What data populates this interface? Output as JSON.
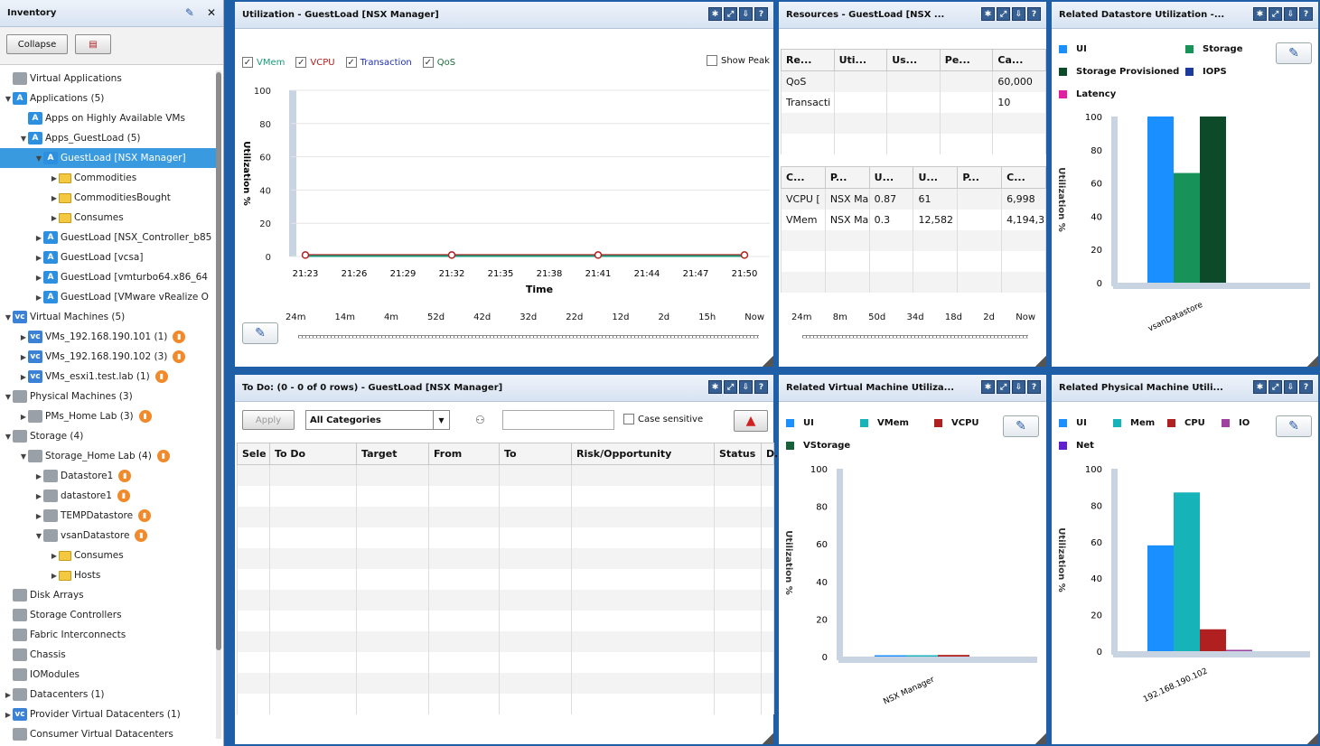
{
  "inventory": {
    "title": "Inventory",
    "collapse_label": "Collapse",
    "items": [
      {
        "label": "Virtual Applications",
        "indent": 0,
        "arrow": "",
        "icon": "gray",
        "badge": false
      },
      {
        "label": "Applications (5)",
        "indent": 0,
        "arrow": "▼",
        "icon": "app",
        "badge": false
      },
      {
        "label": "Apps on Highly Available VMs",
        "indent": 1,
        "arrow": "",
        "icon": "app",
        "badge": false
      },
      {
        "label": "Apps_GuestLoad (5)",
        "indent": 1,
        "arrow": "▼",
        "icon": "app",
        "badge": false
      },
      {
        "label": "GuestLoad [NSX Manager]",
        "indent": 2,
        "arrow": "▼",
        "icon": "app",
        "badge": false,
        "selected": true
      },
      {
        "label": "Commodities",
        "indent": 3,
        "arrow": "▶",
        "icon": "folder",
        "badge": false
      },
      {
        "label": "CommoditiesBought",
        "indent": 3,
        "arrow": "▶",
        "icon": "folder",
        "badge": false
      },
      {
        "label": "Consumes",
        "indent": 3,
        "arrow": "▶",
        "icon": "folder",
        "badge": false
      },
      {
        "label": "GuestLoad [NSX_Controller_b85",
        "indent": 2,
        "arrow": "▶",
        "icon": "app",
        "badge": false
      },
      {
        "label": "GuestLoad [vcsa]",
        "indent": 2,
        "arrow": "▶",
        "icon": "app",
        "badge": false
      },
      {
        "label": "GuestLoad [vmturbo64.x86_64",
        "indent": 2,
        "arrow": "▶",
        "icon": "app",
        "badge": false
      },
      {
        "label": "GuestLoad [VMware vRealize O",
        "indent": 2,
        "arrow": "▶",
        "icon": "app",
        "badge": false
      },
      {
        "label": "Virtual Machines (5)",
        "indent": 0,
        "arrow": "▼",
        "icon": "vm",
        "badge": false
      },
      {
        "label": "VMs_192.168.190.101 (1)",
        "indent": 1,
        "arrow": "▶",
        "icon": "vm",
        "badge": true
      },
      {
        "label": "VMs_192.168.190.102 (3)",
        "indent": 1,
        "arrow": "▶",
        "icon": "vm",
        "badge": true
      },
      {
        "label": "VMs_esxi1.test.lab (1)",
        "indent": 1,
        "arrow": "▶",
        "icon": "vm",
        "badge": true
      },
      {
        "label": "Physical Machines (3)",
        "indent": 0,
        "arrow": "▼",
        "icon": "gray",
        "badge": false
      },
      {
        "label": "PMs_Home Lab (3)",
        "indent": 1,
        "arrow": "▶",
        "icon": "gray",
        "badge": true
      },
      {
        "label": "Storage (4)",
        "indent": 0,
        "arrow": "▼",
        "icon": "gray",
        "badge": false
      },
      {
        "label": "Storage_Home Lab (4)",
        "indent": 1,
        "arrow": "▼",
        "icon": "gray",
        "badge": true
      },
      {
        "label": "Datastore1",
        "indent": 2,
        "arrow": "▶",
        "icon": "gray",
        "badge": true
      },
      {
        "label": "datastore1",
        "indent": 2,
        "arrow": "▶",
        "icon": "gray",
        "badge": true
      },
      {
        "label": "TEMPDatastore",
        "indent": 2,
        "arrow": "▶",
        "icon": "gray",
        "badge": true
      },
      {
        "label": "vsanDatastore",
        "indent": 2,
        "arrow": "▼",
        "icon": "gray",
        "badge": true
      },
      {
        "label": "Consumes",
        "indent": 3,
        "arrow": "▶",
        "icon": "folder",
        "badge": false
      },
      {
        "label": "Hosts",
        "indent": 3,
        "arrow": "▶",
        "icon": "folder",
        "badge": false
      },
      {
        "label": "Disk Arrays",
        "indent": 0,
        "arrow": "",
        "icon": "gray",
        "badge": false
      },
      {
        "label": "Storage Controllers",
        "indent": 0,
        "arrow": "",
        "icon": "gray",
        "badge": false
      },
      {
        "label": "Fabric Interconnects",
        "indent": 0,
        "arrow": "",
        "icon": "gray",
        "badge": false
      },
      {
        "label": "Chassis",
        "indent": 0,
        "arrow": "",
        "icon": "gray",
        "badge": false
      },
      {
        "label": "IOModules",
        "indent": 0,
        "arrow": "",
        "icon": "gray",
        "badge": false
      },
      {
        "label": "Datacenters (1)",
        "indent": 0,
        "arrow": "▶",
        "icon": "gray",
        "badge": false
      },
      {
        "label": "Provider Virtual Datacenters (1)",
        "indent": 0,
        "arrow": "▶",
        "icon": "vm",
        "badge": false
      },
      {
        "label": "Consumer Virtual Datacenters",
        "indent": 0,
        "arrow": "",
        "icon": "gray",
        "badge": false
      }
    ]
  },
  "utilization": {
    "title": "Utilization - GuestLoad [NSX Manager]",
    "checks": [
      {
        "label": "VMem",
        "color": "#1a9a7a"
      },
      {
        "label": "VCPU",
        "color": "#b02020"
      },
      {
        "label": "Transaction",
        "color": "#2030b0"
      },
      {
        "label": "QoS",
        "color": "#207040"
      }
    ],
    "show_peak": "Show Peak",
    "slider_labels": [
      "24m",
      "14m",
      "4m",
      "52d",
      "42d",
      "32d",
      "22d",
      "12d",
      "2d",
      "15h",
      "Now"
    ]
  },
  "resources": {
    "title": "Resources - GuestLoad [NSX ...",
    "table1": {
      "headers": [
        "Re...",
        "Uti...",
        "Us...",
        "Pe...",
        "Ca..."
      ],
      "rows": [
        [
          "QoS",
          "",
          "",
          "",
          "60,000"
        ],
        [
          "Transacti",
          "",
          "",
          "",
          "10"
        ],
        [
          "",
          "",
          "",
          "",
          ""
        ],
        [
          "",
          "",
          "",
          "",
          ""
        ]
      ]
    },
    "table2": {
      "headers": [
        "C...",
        "P...",
        "U...",
        "U...",
        "P...",
        "C..."
      ],
      "rows": [
        [
          "VCPU [",
          "NSX Ma",
          "0.87",
          "61",
          "",
          "6,998"
        ],
        [
          "VMem",
          "NSX Ma",
          "0.3",
          "12,582",
          "",
          "4,194,3"
        ],
        [
          "",
          "",
          "",
          "",
          "",
          ""
        ],
        [
          "",
          "",
          "",
          "",
          "",
          ""
        ],
        [
          "",
          "",
          "",
          "",
          "",
          ""
        ]
      ]
    },
    "slider_labels": [
      "24m",
      "8m",
      "50d",
      "34d",
      "18d",
      "2d",
      "Now"
    ]
  },
  "datastore": {
    "title": "Related Datastore Utilization -...",
    "legend": [
      {
        "label": "UI",
        "color": "#1a8fff"
      },
      {
        "label": "Storage",
        "color": "#17935a"
      },
      {
        "label": "Storage Provisioned",
        "color": "#0d4a2a"
      },
      {
        "label": "IOPS",
        "color": "#1c3a9a"
      },
      {
        "label": "Latency",
        "color": "#e020a0"
      }
    ]
  },
  "todo": {
    "title": "To Do: (0 - 0 of 0 rows) - GuestLoad [NSX Manager]",
    "apply_label": "Apply",
    "category": "All Categories",
    "case_sensitive": "Case sensitive",
    "headers": [
      "Sele",
      "To Do",
      "Target",
      "From",
      "To",
      "Risk/Opportunity",
      "Status",
      "D."
    ]
  },
  "vm_util": {
    "title": "Related Virtual Machine Utiliza...",
    "legend": [
      {
        "label": "UI",
        "color": "#1a8fff"
      },
      {
        "label": "VMem",
        "color": "#16b3b8"
      },
      {
        "label": "VCPU",
        "color": "#b02020"
      },
      {
        "label": "VStorage",
        "color": "#17603a"
      }
    ]
  },
  "pm_util": {
    "title": "Related Physical Machine Utili...",
    "legend": [
      {
        "label": "UI",
        "color": "#1a8fff"
      },
      {
        "label": "Mem",
        "color": "#16b3b8"
      },
      {
        "label": "CPU",
        "color": "#b02020"
      },
      {
        "label": "IO",
        "color": "#a040a0"
      },
      {
        "label": "Net",
        "color": "#6020d0"
      }
    ]
  },
  "chart_data": [
    {
      "type": "line",
      "ylabel": "Utilization %",
      "xlabel": "Time",
      "ylim": [
        0,
        100
      ],
      "x": [
        "21:23",
        "21:26",
        "21:29",
        "21:32",
        "21:35",
        "21:38",
        "21:41",
        "21:44",
        "21:47",
        "21:50"
      ],
      "series": [
        {
          "name": "VCPU",
          "color": "#b02020",
          "values": [
            0.87,
            0.87,
            0.87,
            0.87,
            0.87,
            0.87,
            0.87,
            0.87,
            0.87,
            0.87
          ]
        },
        {
          "name": "VMem",
          "color": "#1a9a7a",
          "values": [
            0.3,
            0.3,
            0.3,
            0.3,
            0.3,
            0.3,
            0.3,
            0.3,
            0.3,
            0.3
          ]
        }
      ]
    },
    {
      "type": "bar",
      "ylabel": "Utilization %",
      "ylim": [
        0,
        100
      ],
      "categories": [
        "vsanDatastore"
      ],
      "series": [
        {
          "name": "UI",
          "color": "#1a8fff",
          "values": [
            100
          ]
        },
        {
          "name": "Storage",
          "color": "#17935a",
          "values": [
            66
          ]
        },
        {
          "name": "Storage Provisioned",
          "color": "#0d4a2a",
          "values": [
            100
          ]
        }
      ]
    },
    {
      "type": "bar",
      "ylabel": "Utilization %",
      "ylim": [
        0,
        100
      ],
      "categories": [
        "NSX Manager"
      ],
      "series": [
        {
          "name": "UI",
          "color": "#1a8fff",
          "values": [
            0.6
          ]
        },
        {
          "name": "VMem",
          "color": "#16b3b8",
          "values": [
            0.3
          ]
        },
        {
          "name": "VCPU",
          "color": "#b02020",
          "values": [
            0.87
          ]
        }
      ]
    },
    {
      "type": "bar",
      "ylabel": "Utilization %",
      "ylim": [
        0,
        100
      ],
      "categories": [
        "192.168.190.102"
      ],
      "series": [
        {
          "name": "UI",
          "color": "#1a8fff",
          "values": [
            58
          ]
        },
        {
          "name": "Mem",
          "color": "#16b3b8",
          "values": [
            87
          ]
        },
        {
          "name": "CPU",
          "color": "#b02020",
          "values": [
            12
          ]
        },
        {
          "name": "IO",
          "color": "#a040a0",
          "values": [
            0.5
          ]
        }
      ]
    }
  ]
}
